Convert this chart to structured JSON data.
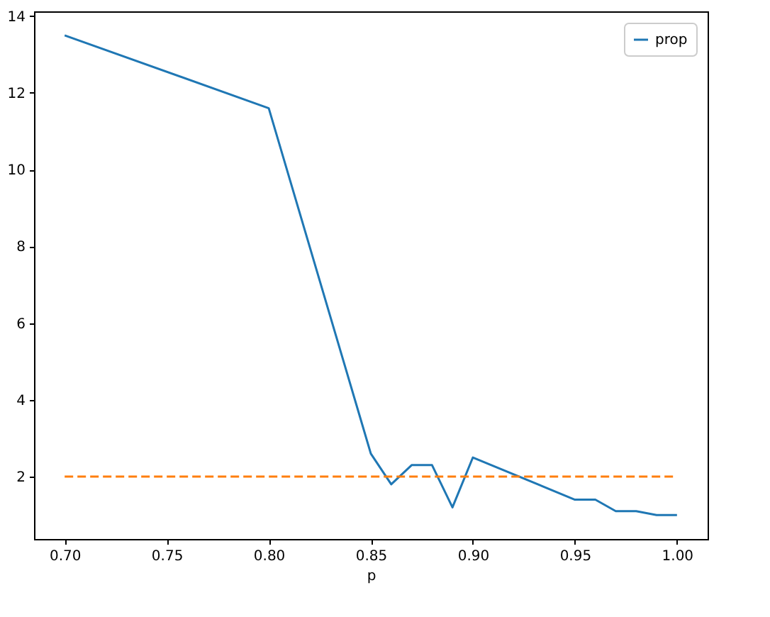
{
  "chart_data": {
    "type": "line",
    "xlabel": "p",
    "x": [
      0.7,
      0.8,
      0.85,
      0.86,
      0.87,
      0.88,
      0.89,
      0.9,
      0.95,
      0.96,
      0.97,
      0.98,
      0.99,
      1.0
    ],
    "series": [
      {
        "name": "prop",
        "color": "#1f77b4",
        "line_style": "solid",
        "values": [
          13.5,
          11.6,
          2.6,
          1.8,
          2.3,
          2.3,
          1.2,
          2.5,
          1.4,
          1.4,
          1.1,
          1.1,
          1.0,
          1.0
        ]
      },
      {
        "color": "#ff7f0e",
        "line_style": "dashed",
        "x": [
          0.7,
          1.0
        ],
        "values": [
          2,
          2
        ]
      }
    ],
    "xlim": [
      0.685,
      1.015
    ],
    "ylim": [
      0.375,
      14.125
    ],
    "xticks": [
      {
        "value": 0.7,
        "label": "0.70"
      },
      {
        "value": 0.75,
        "label": "0.75"
      },
      {
        "value": 0.8,
        "label": "0.80"
      },
      {
        "value": 0.85,
        "label": "0.85"
      },
      {
        "value": 0.9,
        "label": "0.90"
      },
      {
        "value": 0.95,
        "label": "0.95"
      },
      {
        "value": 1.0,
        "label": "1.00"
      }
    ],
    "yticks": [
      2,
      4,
      6,
      8,
      10,
      12,
      14
    ],
    "grid": false,
    "legend": "top right",
    "marker": "none"
  }
}
